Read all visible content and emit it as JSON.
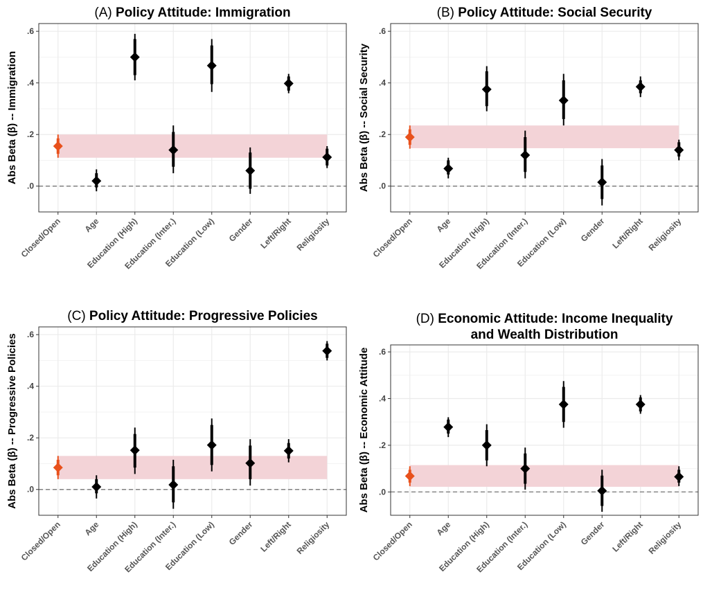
{
  "figure": {
    "categories": [
      "Closed/Open",
      "Age",
      "Education (High)",
      "Education (Inter.)",
      "Education (Low)",
      "Gender",
      "Left/Right",
      "Religiosity"
    ],
    "y_ticks": [
      ".0",
      ".2",
      ".4",
      ".6"
    ],
    "colors": {
      "highlight": "#e8511c",
      "point": "#000000",
      "band": "#f3d3d7",
      "reference_line": "#7f7f7f",
      "grid": "#ebebeb",
      "border": "#333333"
    }
  },
  "chart_data": [
    {
      "type": "pointrange",
      "title_prefix": "(A)",
      "title": "Policy Attitude: Immigration",
      "title_lines": [
        "Policy Attitude: Immigration"
      ],
      "ylabel": "Abs Beta (β) -- Immigration",
      "ylim": [
        -0.1,
        0.63
      ],
      "band": [
        0.11,
        0.2
      ],
      "points": [
        {
          "category": "Closed/Open",
          "value": 0.155,
          "ci_outer": [
            0.11,
            0.2
          ],
          "ci_inner": [
            0.125,
            0.185
          ],
          "highlight": true
        },
        {
          "category": "Age",
          "value": 0.02,
          "ci_outer": [
            -0.02,
            0.065
          ],
          "ci_inner": [
            -0.005,
            0.05
          ]
        },
        {
          "category": "Education (High)",
          "value": 0.5,
          "ci_outer": [
            0.41,
            0.59
          ],
          "ci_inner": [
            0.43,
            0.57
          ]
        },
        {
          "category": "Education (Inter.)",
          "value": 0.14,
          "ci_outer": [
            0.05,
            0.235
          ],
          "ci_inner": [
            0.075,
            0.21
          ]
        },
        {
          "category": "Education (Low)",
          "value": 0.467,
          "ci_outer": [
            0.365,
            0.57
          ],
          "ci_inner": [
            0.395,
            0.545
          ]
        },
        {
          "category": "Gender",
          "value": 0.06,
          "ci_outer": [
            -0.03,
            0.15
          ],
          "ci_inner": [
            -0.01,
            0.13
          ]
        },
        {
          "category": "Left/Right",
          "value": 0.398,
          "ci_outer": [
            0.36,
            0.435
          ],
          "ci_inner": [
            0.37,
            0.425
          ]
        },
        {
          "category": "Religiosity",
          "value": 0.112,
          "ci_outer": [
            0.07,
            0.155
          ],
          "ci_inner": [
            0.08,
            0.145
          ]
        }
      ]
    },
    {
      "type": "pointrange",
      "title_prefix": "(B)",
      "title": "Policy Attitude: Social Security",
      "title_lines": [
        "Policy Attitude: Social Security"
      ],
      "ylabel": "Abs Beta (β) -- Social Security",
      "ylim": [
        -0.1,
        0.63
      ],
      "band": [
        0.147,
        0.235
      ],
      "points": [
        {
          "category": "Closed/Open",
          "value": 0.19,
          "ci_outer": [
            0.145,
            0.235
          ],
          "ci_inner": [
            0.16,
            0.22
          ],
          "highlight": true
        },
        {
          "category": "Age",
          "value": 0.068,
          "ci_outer": [
            0.03,
            0.11
          ],
          "ci_inner": [
            0.045,
            0.1
          ]
        },
        {
          "category": "Education (High)",
          "value": 0.375,
          "ci_outer": [
            0.29,
            0.465
          ],
          "ci_inner": [
            0.31,
            0.445
          ]
        },
        {
          "category": "Education (Inter.)",
          "value": 0.12,
          "ci_outer": [
            0.03,
            0.215
          ],
          "ci_inner": [
            0.055,
            0.19
          ]
        },
        {
          "category": "Education (Low)",
          "value": 0.332,
          "ci_outer": [
            0.235,
            0.435
          ],
          "ci_inner": [
            0.26,
            0.41
          ]
        },
        {
          "category": "Gender",
          "value": 0.015,
          "ci_outer": [
            -0.075,
            0.105
          ],
          "ci_inner": [
            -0.05,
            0.08
          ]
        },
        {
          "category": "Left/Right",
          "value": 0.385,
          "ci_outer": [
            0.345,
            0.425
          ],
          "ci_inner": [
            0.36,
            0.41
          ]
        },
        {
          "category": "Religiosity",
          "value": 0.14,
          "ci_outer": [
            0.1,
            0.18
          ],
          "ci_inner": [
            0.115,
            0.17
          ]
        }
      ]
    },
    {
      "type": "pointrange",
      "title_prefix": "(C)",
      "title": "Policy Attitude: Progressive Policies",
      "title_lines": [
        "Policy Attitude: Progressive Policies"
      ],
      "ylabel": "Abs Beta (β) -- Progressive Policies",
      "ylim": [
        -0.1,
        0.63
      ],
      "band": [
        0.04,
        0.13
      ],
      "points": [
        {
          "category": "Closed/Open",
          "value": 0.085,
          "ci_outer": [
            0.04,
            0.13
          ],
          "ci_inner": [
            0.055,
            0.115
          ],
          "highlight": true
        },
        {
          "category": "Age",
          "value": 0.01,
          "ci_outer": [
            -0.035,
            0.055
          ],
          "ci_inner": [
            -0.015,
            0.04
          ]
        },
        {
          "category": "Education (High)",
          "value": 0.152,
          "ci_outer": [
            0.06,
            0.24
          ],
          "ci_inner": [
            0.085,
            0.215
          ]
        },
        {
          "category": "Education (Inter.)",
          "value": 0.018,
          "ci_outer": [
            -0.075,
            0.115
          ],
          "ci_inner": [
            -0.05,
            0.09
          ]
        },
        {
          "category": "Education (Low)",
          "value": 0.172,
          "ci_outer": [
            0.07,
            0.275
          ],
          "ci_inner": [
            0.095,
            0.25
          ]
        },
        {
          "category": "Gender",
          "value": 0.102,
          "ci_outer": [
            0.015,
            0.195
          ],
          "ci_inner": [
            0.04,
            0.17
          ]
        },
        {
          "category": "Left/Right",
          "value": 0.15,
          "ci_outer": [
            0.105,
            0.195
          ],
          "ci_inner": [
            0.12,
            0.18
          ]
        },
        {
          "category": "Religiosity",
          "value": 0.537,
          "ci_outer": [
            0.5,
            0.575
          ],
          "ci_inner": [
            0.51,
            0.565
          ]
        }
      ]
    },
    {
      "type": "pointrange",
      "title_prefix": "(D)",
      "title": "Economic Attitude: Income Inequality and Wealth Distribution",
      "title_lines": [
        "Economic Attitude: Income Inequality",
        "and Wealth Distribution"
      ],
      "ylabel": "Abs Beta (β) -- Economic Attitude",
      "ylim": [
        -0.1,
        0.63
      ],
      "band": [
        0.022,
        0.115
      ],
      "points": [
        {
          "category": "Closed/Open",
          "value": 0.068,
          "ci_outer": [
            0.025,
            0.11
          ],
          "ci_inner": [
            0.04,
            0.095
          ],
          "highlight": true
        },
        {
          "category": "Age",
          "value": 0.278,
          "ci_outer": [
            0.235,
            0.32
          ],
          "ci_inner": [
            0.25,
            0.31
          ]
        },
        {
          "category": "Education (High)",
          "value": 0.2,
          "ci_outer": [
            0.11,
            0.29
          ],
          "ci_inner": [
            0.135,
            0.265
          ]
        },
        {
          "category": "Education (Inter.)",
          "value": 0.1,
          "ci_outer": [
            0.01,
            0.19
          ],
          "ci_inner": [
            0.035,
            0.165
          ]
        },
        {
          "category": "Education (Low)",
          "value": 0.375,
          "ci_outer": [
            0.275,
            0.475
          ],
          "ci_inner": [
            0.3,
            0.45
          ]
        },
        {
          "category": "Gender",
          "value": 0.005,
          "ci_outer": [
            -0.085,
            0.095
          ],
          "ci_inner": [
            -0.06,
            0.07
          ]
        },
        {
          "category": "Left/Right",
          "value": 0.375,
          "ci_outer": [
            0.335,
            0.415
          ],
          "ci_inner": [
            0.345,
            0.405
          ]
        },
        {
          "category": "Religiosity",
          "value": 0.065,
          "ci_outer": [
            0.025,
            0.11
          ],
          "ci_inner": [
            0.04,
            0.095
          ]
        }
      ]
    }
  ]
}
